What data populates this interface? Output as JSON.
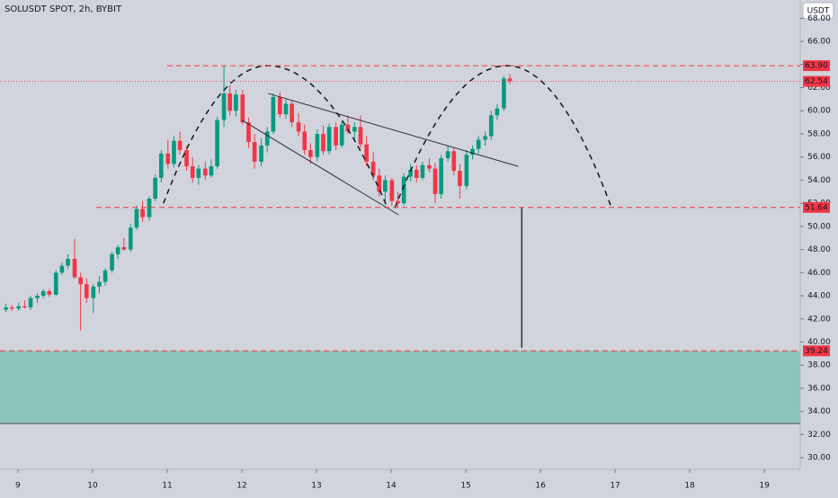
{
  "chart_data": {
    "type": "candlestick",
    "title": "SOLUSDT SPOT, 2h, BYBIT",
    "currency_button": "USDT",
    "up_color": "#089981",
    "down_color": "#f23645",
    "xlim": [
      8.76,
      19.48
    ],
    "ylim": [
      29.0,
      69.58
    ],
    "xticks": [
      9,
      10,
      11,
      12,
      13,
      14,
      15,
      16,
      17,
      18,
      19
    ],
    "yticks": [
      {
        "value": 30,
        "label": "30.00"
      },
      {
        "value": 32,
        "label": "32.00"
      },
      {
        "value": 34,
        "label": "34.00"
      },
      {
        "value": 36,
        "label": "36.00"
      },
      {
        "value": 38,
        "label": "38.00"
      },
      {
        "value": 40,
        "label": "40.00"
      },
      {
        "value": 42,
        "label": "42.00"
      },
      {
        "value": 44,
        "label": "44.00"
      },
      {
        "value": 46,
        "label": "46.00"
      },
      {
        "value": 48,
        "label": "48.00"
      },
      {
        "value": 50,
        "label": "50.00"
      },
      {
        "value": 52,
        "label": "52.00"
      },
      {
        "value": 54,
        "label": "54.00"
      },
      {
        "value": 56,
        "label": "56.00"
      },
      {
        "value": 58,
        "label": "58.00"
      },
      {
        "value": 60,
        "label": "60.00"
      },
      {
        "value": 62,
        "label": "62.00"
      },
      {
        "value": 64,
        "label": "64.00"
      },
      {
        "value": 66,
        "label": "66.00"
      },
      {
        "value": 68,
        "label": "68.00"
      }
    ],
    "x": [
      8.84,
      8.92,
      9.01,
      9.09,
      9.17,
      9.26,
      9.34,
      9.42,
      9.51,
      9.59,
      9.67,
      9.76,
      9.84,
      9.92,
      10.01,
      10.09,
      10.17,
      10.26,
      10.34,
      10.42,
      10.51,
      10.59,
      10.67,
      10.76,
      10.84,
      10.92,
      11.01,
      11.09,
      11.17,
      11.26,
      11.34,
      11.42,
      11.51,
      11.59,
      11.67,
      11.76,
      11.84,
      11.92,
      12.01,
      12.09,
      12.17,
      12.26,
      12.34,
      12.42,
      12.51,
      12.59,
      12.67,
      12.76,
      12.84,
      12.92,
      13.01,
      13.09,
      13.17,
      13.26,
      13.34,
      13.42,
      13.51,
      13.59,
      13.67,
      13.76,
      13.84,
      13.92,
      14.01,
      14.09,
      14.17,
      14.26,
      14.34,
      14.42,
      14.51,
      14.59,
      14.67,
      14.76,
      14.84,
      14.92,
      15.01,
      15.09,
      15.17,
      15.26,
      15.34,
      15.42,
      15.51,
      15.59
    ],
    "open": [
      42.8,
      43.0,
      42.9,
      43.1,
      43.0,
      43.8,
      44.0,
      44.4,
      44.1,
      46.0,
      46.6,
      47.2,
      45.6,
      45.0,
      43.8,
      44.8,
      45.2,
      46.2,
      47.6,
      48.2,
      48.0,
      49.9,
      51.5,
      50.8,
      52.4,
      54.2,
      56.3,
      55.4,
      57.4,
      56.6,
      55.2,
      54.2,
      55.0,
      54.4,
      55.2,
      59.2,
      61.5,
      60.0,
      61.4,
      59.0,
      57.3,
      55.6,
      57.0,
      58.2,
      61.2,
      59.7,
      60.6,
      59.0,
      58.2,
      56.6,
      56.0,
      58.0,
      56.5,
      58.6,
      57.0,
      58.8,
      58.2,
      58.6,
      57.1,
      55.6,
      54.4,
      53.0,
      54.0,
      52.2,
      52.0,
      54.3,
      54.9,
      54.2,
      55.3,
      55.0,
      52.8,
      55.9,
      56.5,
      54.8,
      53.5,
      56.2,
      56.7,
      57.5,
      57.8,
      59.6,
      60.2,
      62.8
    ],
    "high": [
      43.3,
      43.2,
      43.4,
      43.6,
      44.0,
      44.2,
      44.6,
      44.6,
      46.2,
      46.9,
      47.6,
      48.9,
      46.0,
      45.5,
      45.0,
      45.7,
      46.4,
      47.8,
      48.4,
      49.0,
      50.2,
      51.8,
      52.2,
      52.6,
      54.5,
      56.6,
      57.5,
      57.8,
      58.2,
      56.9,
      56.0,
      55.3,
      55.6,
      55.8,
      59.5,
      63.9,
      62.2,
      61.8,
      61.8,
      59.4,
      58.0,
      57.6,
      58.6,
      61.5,
      61.6,
      61.0,
      60.9,
      59.8,
      58.8,
      57.2,
      58.4,
      58.7,
      58.9,
      59.0,
      59.2,
      59.6,
      59.0,
      59.6,
      57.8,
      56.4,
      55.0,
      54.4,
      54.2,
      53.0,
      54.6,
      55.4,
      55.3,
      55.6,
      55.9,
      55.5,
      56.2,
      57.0,
      56.8,
      55.4,
      56.6,
      57.0,
      57.8,
      58.2,
      60.0,
      60.6,
      63.0,
      63.2
    ],
    "low": [
      42.6,
      42.7,
      42.7,
      42.9,
      42.8,
      43.4,
      43.8,
      43.9,
      44.0,
      45.8,
      46.3,
      45.5,
      41.0,
      43.4,
      42.5,
      44.2,
      44.9,
      46.0,
      47.2,
      47.9,
      47.8,
      49.7,
      50.4,
      50.5,
      52.2,
      53.8,
      55.0,
      55.1,
      56.2,
      54.8,
      53.8,
      53.6,
      54.0,
      54.2,
      55.0,
      58.6,
      59.6,
      59.5,
      58.8,
      56.8,
      55.0,
      55.2,
      56.4,
      58.0,
      59.4,
      59.3,
      58.6,
      57.8,
      56.2,
      55.4,
      55.6,
      56.2,
      56.2,
      56.6,
      56.8,
      58.0,
      57.4,
      56.8,
      55.2,
      54.0,
      52.6,
      52.2,
      51.8,
      51.6,
      51.8,
      53.9,
      53.8,
      54.0,
      54.7,
      52.0,
      52.4,
      55.6,
      54.4,
      52.4,
      53.2,
      55.8,
      56.3,
      57.0,
      57.5,
      59.2,
      60.0,
      62.3
    ],
    "close": [
      43.0,
      42.9,
      43.1,
      43.0,
      43.8,
      44.0,
      44.4,
      44.1,
      46.0,
      46.6,
      47.2,
      45.6,
      45.0,
      43.8,
      44.8,
      45.2,
      46.2,
      47.6,
      48.2,
      48.0,
      49.9,
      51.5,
      50.8,
      52.4,
      54.2,
      56.3,
      55.4,
      57.4,
      56.6,
      55.2,
      54.2,
      55.0,
      54.4,
      55.2,
      59.2,
      61.5,
      60.0,
      61.4,
      59.0,
      57.3,
      55.6,
      57.0,
      58.2,
      61.2,
      59.7,
      60.6,
      59.0,
      58.2,
      56.6,
      56.0,
      58.0,
      56.5,
      58.6,
      57.0,
      58.8,
      58.2,
      58.6,
      57.1,
      55.6,
      54.4,
      53.0,
      54.0,
      52.2,
      52.0,
      54.3,
      54.9,
      54.2,
      55.3,
      55.0,
      52.8,
      55.9,
      56.5,
      54.8,
      53.5,
      56.2,
      56.7,
      57.5,
      57.8,
      59.6,
      60.2,
      62.8,
      62.54
    ],
    "levels": [
      {
        "value": 63.9,
        "label": "63.90"
      },
      {
        "value": 51.64,
        "label": "51.64"
      },
      {
        "value": 39.24,
        "label": "39.24"
      }
    ],
    "last_price": {
      "value": 62.54,
      "label": "62.54"
    },
    "zone": [
      32.95,
      39.24
    ],
    "trend_lines": [
      [
        [
          12.35,
          61.5
        ],
        [
          15.7,
          55.2
        ]
      ],
      [
        [
          12.0,
          59.2
        ],
        [
          14.1,
          51.0
        ]
      ]
    ],
    "arcs": [
      [
        [
          10.95,
          52.0
        ],
        [
          12.35,
          63.9
        ],
        [
          13.95,
          51.6
        ]
      ],
      [
        [
          14.05,
          51.6
        ],
        [
          15.55,
          63.9
        ],
        [
          16.95,
          51.64
        ]
      ]
    ],
    "target_line": [
      [
        15.75,
        51.64
      ],
      [
        15.75,
        39.5
      ]
    ]
  }
}
